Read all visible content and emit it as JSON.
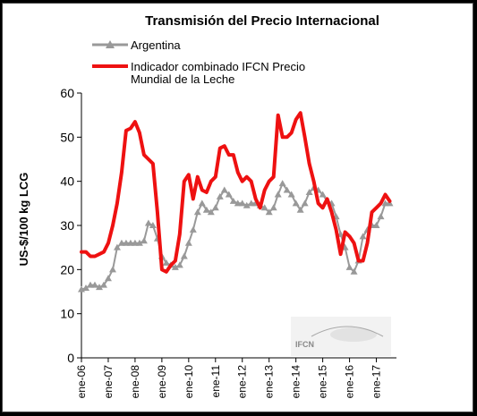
{
  "chart_data": {
    "type": "line",
    "title": "Transmisión del Precio Internacional",
    "ylabel": "US-$/100 kg LCG",
    "xlabel": "",
    "ylim": [
      0,
      60
    ],
    "yticks": [
      "0",
      "10",
      "20",
      "30",
      "40",
      "50",
      "60"
    ],
    "x_tick_labels": [
      "ene-06",
      "ene-07",
      "ene-08",
      "ene-09",
      "ene-10",
      "ene-11",
      "ene-12",
      "ene-13",
      "ene-14",
      "ene-15",
      "ene-16",
      "ene-17"
    ],
    "grid": false,
    "legend_position": "top",
    "watermark": "IFCN",
    "series": [
      {
        "name": "Argentina",
        "color": "#999999",
        "marker": "triangle",
        "points": [
          [
            "2006-01",
            15.5
          ],
          [
            "2006-03",
            15.8
          ],
          [
            "2006-05",
            16.5
          ],
          [
            "2006-07",
            16.5
          ],
          [
            "2006-09",
            16
          ],
          [
            "2006-11",
            16.5
          ],
          [
            "2007-01",
            18
          ],
          [
            "2007-03",
            20
          ],
          [
            "2007-05",
            25
          ],
          [
            "2007-07",
            26
          ],
          [
            "2007-09",
            26
          ],
          [
            "2007-11",
            26
          ],
          [
            "2008-01",
            26
          ],
          [
            "2008-03",
            26
          ],
          [
            "2008-05",
            26.5
          ],
          [
            "2008-07",
            30.5
          ],
          [
            "2008-09",
            30
          ],
          [
            "2008-11",
            27
          ],
          [
            "2009-01",
            23
          ],
          [
            "2009-03",
            21.5
          ],
          [
            "2009-05",
            21
          ],
          [
            "2009-07",
            20.5
          ],
          [
            "2009-09",
            21
          ],
          [
            "2009-11",
            23
          ],
          [
            "2010-01",
            26
          ],
          [
            "2010-03",
            29
          ],
          [
            "2010-05",
            33
          ],
          [
            "2010-07",
            35
          ],
          [
            "2010-09",
            33.5
          ],
          [
            "2010-11",
            33
          ],
          [
            "2011-01",
            34
          ],
          [
            "2011-03",
            36.5
          ],
          [
            "2011-05",
            38
          ],
          [
            "2011-07",
            37
          ],
          [
            "2011-09",
            35.5
          ],
          [
            "2011-11",
            35
          ],
          [
            "2012-01",
            35
          ],
          [
            "2012-03",
            34.5
          ],
          [
            "2012-05",
            35
          ],
          [
            "2012-07",
            35
          ],
          [
            "2012-09",
            34.5
          ],
          [
            "2012-11",
            34
          ],
          [
            "2013-01",
            33
          ],
          [
            "2013-03",
            34
          ],
          [
            "2013-05",
            37
          ],
          [
            "2013-07",
            39.5
          ],
          [
            "2013-09",
            38
          ],
          [
            "2013-11",
            37
          ],
          [
            "2014-01",
            35
          ],
          [
            "2014-03",
            33.5
          ],
          [
            "2014-05",
            35
          ],
          [
            "2014-07",
            37.5
          ],
          [
            "2014-09",
            38.5
          ],
          [
            "2014-11",
            38
          ],
          [
            "2015-01",
            37
          ],
          [
            "2015-03",
            35.5
          ],
          [
            "2015-05",
            35
          ],
          [
            "2015-07",
            32
          ],
          [
            "2015-09",
            28
          ],
          [
            "2015-11",
            25
          ],
          [
            "2016-01",
            20.5
          ],
          [
            "2016-03",
            19.5
          ],
          [
            "2016-05",
            22
          ],
          [
            "2016-07",
            27.5
          ],
          [
            "2016-09",
            29
          ],
          [
            "2016-11",
            30
          ],
          [
            "2017-01",
            30
          ],
          [
            "2017-03",
            32
          ],
          [
            "2017-05",
            35
          ],
          [
            "2017-07",
            35
          ]
        ]
      },
      {
        "name": "Indicador combinado IFCN Precio Mundial de la Leche",
        "color": "#EE1111",
        "marker": "none",
        "points": [
          [
            "2006-01",
            24
          ],
          [
            "2006-03",
            24
          ],
          [
            "2006-05",
            23
          ],
          [
            "2006-07",
            23
          ],
          [
            "2006-09",
            23.5
          ],
          [
            "2006-11",
            24
          ],
          [
            "2007-01",
            26
          ],
          [
            "2007-03",
            30
          ],
          [
            "2007-05",
            35
          ],
          [
            "2007-07",
            42
          ],
          [
            "2007-09",
            51.5
          ],
          [
            "2007-11",
            52
          ],
          [
            "2008-01",
            53.5
          ],
          [
            "2008-03",
            51
          ],
          [
            "2008-05",
            46
          ],
          [
            "2008-07",
            45
          ],
          [
            "2008-09",
            44
          ],
          [
            "2008-11",
            33
          ],
          [
            "2009-01",
            20
          ],
          [
            "2009-03",
            19.5
          ],
          [
            "2009-05",
            21
          ],
          [
            "2009-07",
            22
          ],
          [
            "2009-09",
            28
          ],
          [
            "2009-11",
            40
          ],
          [
            "2010-01",
            41.5
          ],
          [
            "2010-03",
            36
          ],
          [
            "2010-05",
            41
          ],
          [
            "2010-07",
            38
          ],
          [
            "2010-09",
            37.5
          ],
          [
            "2010-11",
            40
          ],
          [
            "2011-01",
            41
          ],
          [
            "2011-03",
            47.5
          ],
          [
            "2011-05",
            48
          ],
          [
            "2011-07",
            46
          ],
          [
            "2011-09",
            46
          ],
          [
            "2011-11",
            42
          ],
          [
            "2012-01",
            40
          ],
          [
            "2012-03",
            41
          ],
          [
            "2012-05",
            40
          ],
          [
            "2012-07",
            36
          ],
          [
            "2012-09",
            34
          ],
          [
            "2012-11",
            38
          ],
          [
            "2013-01",
            40
          ],
          [
            "2013-03",
            41
          ],
          [
            "2013-05",
            55
          ],
          [
            "2013-07",
            50
          ],
          [
            "2013-09",
            50
          ],
          [
            "2013-11",
            51
          ],
          [
            "2014-01",
            54
          ],
          [
            "2014-03",
            55.5
          ],
          [
            "2014-05",
            50
          ],
          [
            "2014-07",
            44
          ],
          [
            "2014-09",
            40
          ],
          [
            "2014-11",
            35
          ],
          [
            "2015-01",
            34
          ],
          [
            "2015-03",
            36
          ],
          [
            "2015-05",
            33
          ],
          [
            "2015-07",
            29
          ],
          [
            "2015-09",
            23.5
          ],
          [
            "2015-11",
            28.5
          ],
          [
            "2016-01",
            27.5
          ],
          [
            "2016-03",
            26
          ],
          [
            "2016-05",
            22
          ],
          [
            "2016-07",
            22
          ],
          [
            "2016-09",
            26
          ],
          [
            "2016-11",
            33
          ],
          [
            "2017-01",
            34
          ],
          [
            "2017-03",
            35
          ],
          [
            "2017-05",
            37
          ],
          [
            "2017-07",
            35.5
          ]
        ]
      }
    ]
  }
}
